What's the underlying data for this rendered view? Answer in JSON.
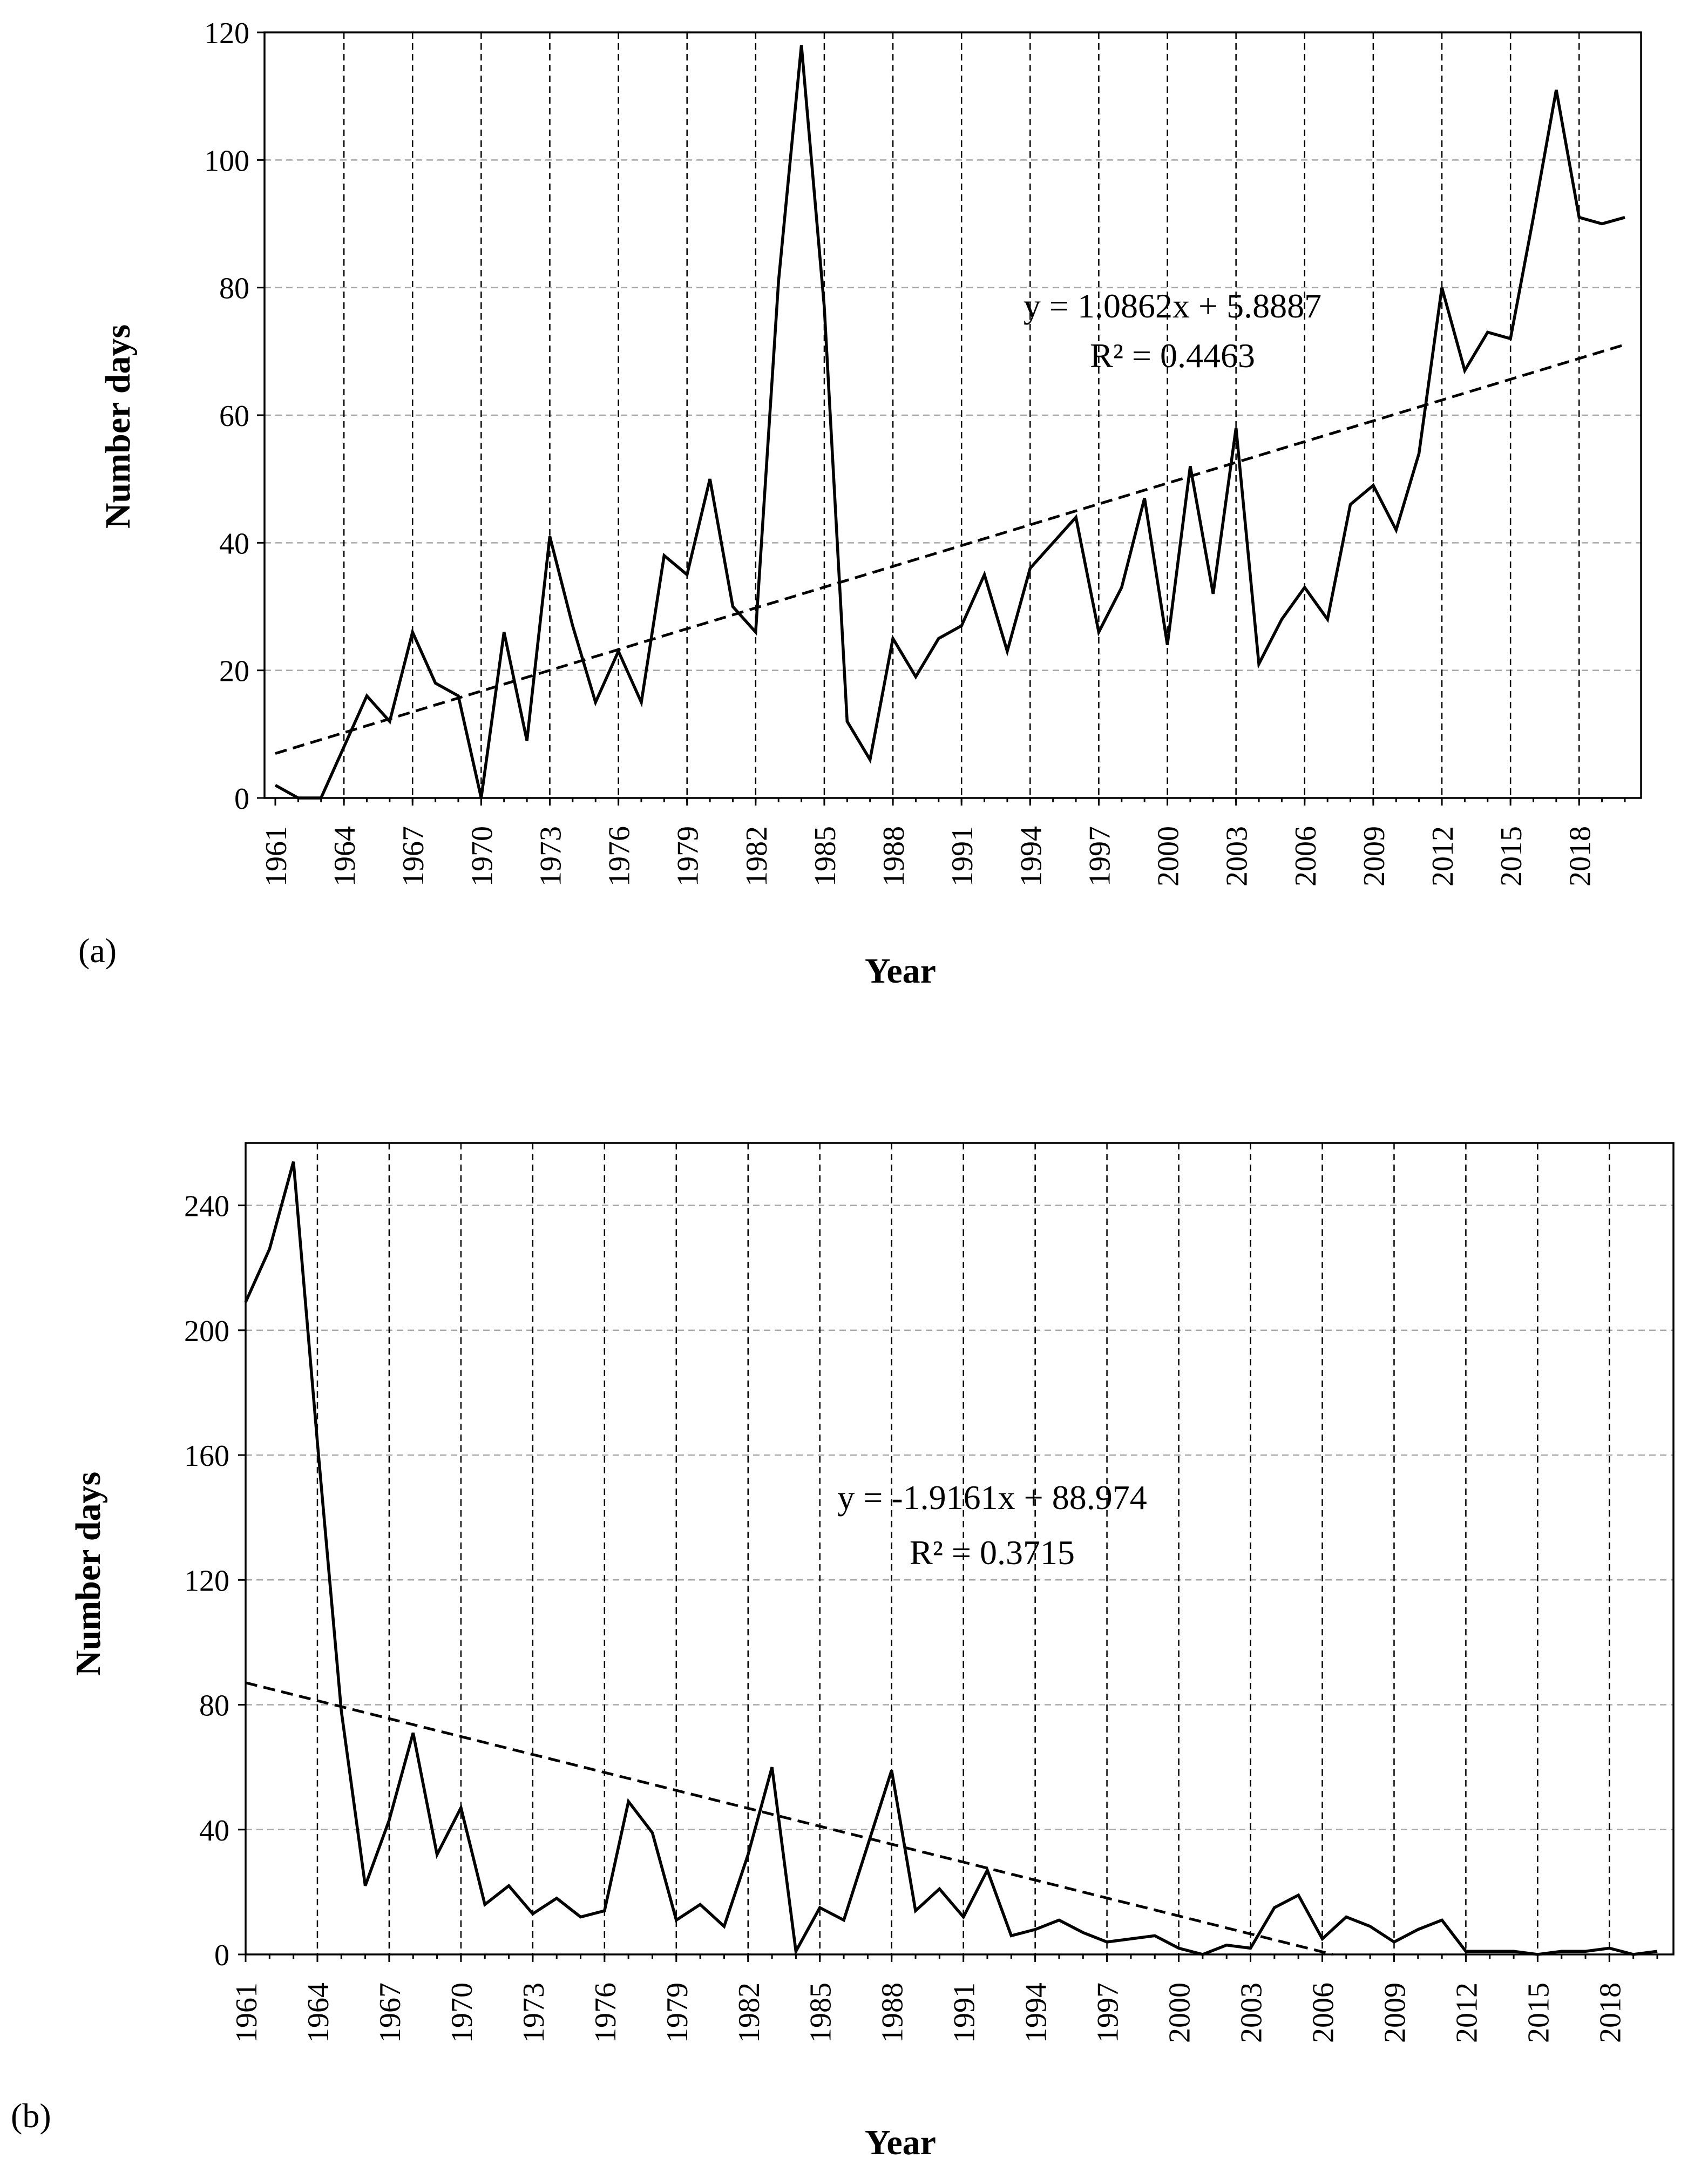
{
  "chart_data": [
    {
      "panel_label": "(a)",
      "type": "line",
      "xlabel": "Year",
      "ylabel": "Number days",
      "ylim": [
        0,
        120
      ],
      "yticks": [
        0,
        20,
        40,
        60,
        80,
        100,
        120
      ],
      "xlim": [
        1961,
        2020
      ],
      "xtick_labels": [
        1961,
        1964,
        1967,
        1970,
        1973,
        1976,
        1979,
        1982,
        1985,
        1988,
        1991,
        1994,
        1997,
        2000,
        2003,
        2006,
        2009,
        2012,
        2015,
        2018
      ],
      "grid": "horizontal light-gray dashed; vertical black dashed",
      "x": [
        1961,
        1962,
        1963,
        1964,
        1965,
        1966,
        1967,
        1968,
        1969,
        1970,
        1971,
        1972,
        1973,
        1974,
        1975,
        1976,
        1977,
        1978,
        1979,
        1980,
        1981,
        1982,
        1983,
        1984,
        1985,
        1986,
        1987,
        1988,
        1989,
        1990,
        1991,
        1992,
        1993,
        1994,
        1995,
        1996,
        1997,
        1998,
        1999,
        2000,
        2001,
        2002,
        2003,
        2004,
        2005,
        2006,
        2007,
        2008,
        2009,
        2010,
        2011,
        2012,
        2013,
        2014,
        2015,
        2016,
        2017,
        2018,
        2019,
        2020
      ],
      "values": [
        2,
        0,
        0,
        8,
        16,
        12,
        26,
        18,
        16,
        0,
        26,
        9,
        41,
        27,
        15,
        23,
        15,
        38,
        35,
        50,
        30,
        26,
        81,
        118,
        77,
        12,
        6,
        25,
        19,
        25,
        27,
        35,
        23,
        36,
        40,
        44,
        26,
        33,
        47,
        24,
        52,
        32,
        58,
        21,
        28,
        33,
        28,
        46,
        49,
        42,
        54,
        80,
        67,
        73,
        72,
        91,
        111,
        91,
        90,
        91
      ],
      "trendline": {
        "style": "dashed",
        "slope": 1.0862,
        "intercept": 5.8887,
        "equation": "y = 1.0862x + 5.8887",
        "r2": "R² = 0.4463"
      }
    },
    {
      "panel_label": "(b)",
      "type": "line",
      "xlabel": "Year",
      "ylabel": "Number days",
      "ylim": [
        0,
        260
      ],
      "yticks": [
        0,
        40,
        80,
        120,
        160,
        200,
        240
      ],
      "xlim": [
        1961,
        2020
      ],
      "xtick_labels": [
        1961,
        1964,
        1967,
        1970,
        1973,
        1976,
        1979,
        1982,
        1985,
        1988,
        1991,
        1994,
        1997,
        2000,
        2003,
        2006,
        2009,
        2012,
        2015,
        2018
      ],
      "grid": "horizontal light-gray dashed; vertical black dashed",
      "x": [
        1961,
        1962,
        1963,
        1964,
        1965,
        1966,
        1967,
        1968,
        1969,
        1970,
        1971,
        1972,
        1973,
        1974,
        1975,
        1976,
        1977,
        1978,
        1979,
        1980,
        1981,
        1982,
        1983,
        1984,
        1985,
        1986,
        1987,
        1988,
        1989,
        1990,
        1991,
        1992,
        1993,
        1994,
        1995,
        1996,
        1997,
        1998,
        1999,
        2000,
        2001,
        2002,
        2003,
        2004,
        2005,
        2006,
        2007,
        2008,
        2009,
        2010,
        2011,
        2012,
        2013,
        2014,
        2015,
        2016,
        2017,
        2018,
        2019,
        2020
      ],
      "values": [
        209,
        226,
        254,
        164,
        78,
        22,
        43,
        71,
        32,
        47,
        16,
        22,
        13,
        18,
        12,
        14,
        49,
        39,
        11,
        16,
        9,
        32,
        60,
        1,
        15,
        11,
        35,
        59,
        14,
        21,
        12,
        27,
        6,
        8,
        11,
        7,
        4,
        5,
        6,
        2,
        0,
        3,
        2,
        15,
        19,
        5,
        12,
        9,
        4,
        8,
        11,
        1,
        1,
        1,
        0,
        1,
        1,
        2,
        0,
        1
      ],
      "trendline": {
        "style": "dashed",
        "slope": -1.9161,
        "intercept": 88.974,
        "equation": "y = -1.9161x + 88.974",
        "r2": "R² = 0.3715"
      }
    }
  ]
}
